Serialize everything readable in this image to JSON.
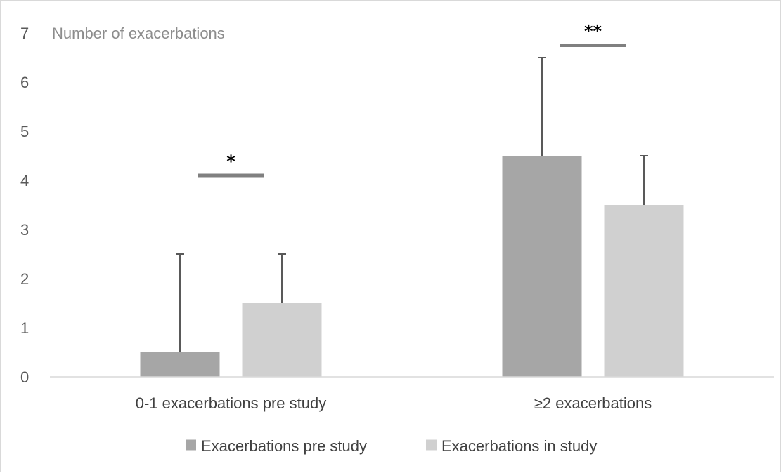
{
  "chart_data": {
    "type": "bar",
    "ylabel": "Number of exacerbations",
    "xlabel": "",
    "ylim": [
      0,
      7
    ],
    "yticks": [
      0,
      1,
      2,
      3,
      4,
      5,
      6,
      7
    ],
    "categories": [
      "0-1 exacerbations pre study",
      "≥2 exacerbations"
    ],
    "series": [
      {
        "name": "Exacerbations pre study",
        "values": [
          0.5,
          4.5
        ],
        "error": [
          2.0,
          2.0
        ],
        "color": "#a6a6a6"
      },
      {
        "name": "Exacerbations in study",
        "values": [
          1.5,
          3.5
        ],
        "error": [
          1.0,
          1.0
        ],
        "color": "#d0d0d0"
      }
    ],
    "significance": [
      {
        "category": "0-1 exacerbations pre study",
        "label": "*",
        "level": 4.1
      },
      {
        "category": "≥2 exacerbations",
        "label": "**",
        "level": 6.75
      }
    ],
    "error_bar_color": "#595959",
    "significance_bar_color": "#808080",
    "grid": false,
    "legend_position": "bottom"
  }
}
